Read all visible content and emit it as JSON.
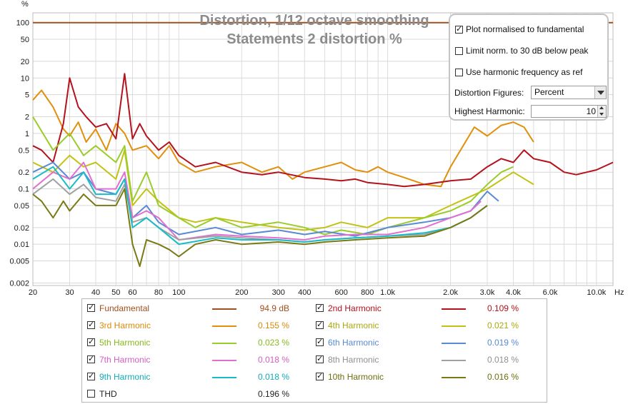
{
  "chart_data": {
    "type": "line",
    "title": "Distortion, 1/12 octave smoothing",
    "subtitle": "Statements 2 distortion %",
    "y_unit_label": "%",
    "x_unit_label": "Hz",
    "x_scale": "log",
    "y_scale": "log",
    "xlim": [
      20,
      12000
    ],
    "ylim": [
      0.0018,
      150
    ],
    "x_ticks": [
      {
        "v": 20,
        "label": "20"
      },
      {
        "v": 30,
        "label": "30"
      },
      {
        "v": 40,
        "label": "40"
      },
      {
        "v": 50,
        "label": "50"
      },
      {
        "v": 60,
        "label": "60"
      },
      {
        "v": 80,
        "label": "80"
      },
      {
        "v": 100,
        "label": "100"
      },
      {
        "v": 200,
        "label": "200"
      },
      {
        "v": 300,
        "label": "300"
      },
      {
        "v": 400,
        "label": "400"
      },
      {
        "v": 600,
        "label": "600"
      },
      {
        "v": 800,
        "label": "800"
      },
      {
        "v": 1000,
        "label": "1.0k"
      },
      {
        "v": 2000,
        "label": "2.0k"
      },
      {
        "v": 3000,
        "label": "3.0k"
      },
      {
        "v": 4000,
        "label": "4.0k"
      },
      {
        "v": 6000,
        "label": "6.0k"
      },
      {
        "v": 10000,
        "label": "10.0k"
      }
    ],
    "y_ticks": [
      {
        "v": 100,
        "label": "100"
      },
      {
        "v": 50,
        "label": "50"
      },
      {
        "v": 20,
        "label": "20"
      },
      {
        "v": 10,
        "label": "10"
      },
      {
        "v": 5,
        "label": "5"
      },
      {
        "v": 2,
        "label": "2"
      },
      {
        "v": 1,
        "label": "1"
      },
      {
        "v": 0.5,
        "label": "0.5"
      },
      {
        "v": 0.2,
        "label": "0.2"
      },
      {
        "v": 0.1,
        "label": "0.1"
      },
      {
        "v": 0.05,
        "label": "0.05"
      },
      {
        "v": 0.02,
        "label": "0.02"
      },
      {
        "v": 0.01,
        "label": "0.01"
      },
      {
        "v": 0.005,
        "label": "0.005"
      },
      {
        "v": 0.002,
        "label": "0.002"
      }
    ],
    "grid": true,
    "series": [
      {
        "name": "Fundamental",
        "color": "#a0501e",
        "x": [
          20,
          12000
        ],
        "y": [
          100,
          100
        ]
      },
      {
        "name": "3rd Harmonic",
        "color": "#e0900a",
        "x": [
          20,
          22,
          25,
          28,
          30,
          33,
          36,
          40,
          45,
          50,
          55,
          60,
          70,
          80,
          90,
          100,
          120,
          150,
          200,
          250,
          300,
          350,
          400,
          500,
          600,
          700,
          800,
          900,
          1000,
          1200,
          1500,
          1800,
          2000,
          2300,
          2600,
          3000,
          3500,
          4000,
          4500,
          5000
        ],
        "y": [
          4,
          6,
          3,
          1.2,
          0.9,
          1.6,
          0.7,
          1.2,
          0.5,
          1.5,
          1.0,
          0.5,
          0.6,
          0.35,
          0.6,
          0.3,
          0.2,
          0.25,
          0.3,
          0.2,
          0.25,
          0.15,
          0.2,
          0.25,
          0.3,
          0.22,
          0.2,
          0.25,
          0.2,
          0.16,
          0.12,
          0.11,
          0.25,
          0.6,
          1.3,
          0.9,
          1.4,
          1.6,
          1.3,
          0.7
        ]
      },
      {
        "name": "2nd Harmonic",
        "color": "#b4121c",
        "x": [
          20,
          22,
          25,
          28,
          30,
          33,
          36,
          40,
          45,
          50,
          55,
          60,
          65,
          70,
          80,
          90,
          100,
          120,
          150,
          200,
          250,
          300,
          400,
          500,
          600,
          700,
          800,
          1000,
          1200,
          1500,
          2000,
          2500,
          3000,
          3500,
          4000,
          4500,
          5000,
          6000,
          7000,
          8000,
          9000,
          10000,
          12000
        ],
        "y": [
          0.6,
          0.5,
          0.3,
          1.5,
          10,
          3,
          2,
          1.3,
          1.5,
          0.8,
          12,
          0.8,
          1.5,
          0.9,
          0.5,
          0.7,
          0.4,
          0.25,
          0.3,
          0.2,
          0.18,
          0.2,
          0.16,
          0.15,
          0.14,
          0.15,
          0.13,
          0.12,
          0.11,
          0.12,
          0.14,
          0.15,
          0.25,
          0.35,
          0.3,
          0.5,
          0.35,
          0.3,
          0.2,
          0.18,
          0.2,
          0.22,
          0.3
        ]
      },
      {
        "name": "4th Harmonic",
        "color": "#c2c214",
        "x": [
          20,
          25,
          30,
          35,
          40,
          50,
          55,
          60,
          70,
          80,
          100,
          120,
          150,
          200,
          300,
          400,
          500,
          600,
          800,
          1000,
          1500,
          2000,
          3000,
          4000,
          5000
        ],
        "y": [
          0.3,
          0.2,
          0.4,
          0.25,
          0.3,
          0.15,
          0.5,
          0.05,
          0.1,
          0.06,
          0.03,
          0.025,
          0.03,
          0.025,
          0.02,
          0.018,
          0.02,
          0.025,
          0.02,
          0.03,
          0.03,
          0.05,
          0.1,
          0.2,
          0.12
        ]
      },
      {
        "name": "5th Harmonic",
        "color": "#9acc2a",
        "x": [
          20,
          25,
          30,
          35,
          40,
          50,
          55,
          60,
          70,
          80,
          100,
          120,
          150,
          200,
          300,
          400,
          500,
          600,
          800,
          1000,
          1500,
          2000,
          2500,
          3000,
          3500,
          4000
        ],
        "y": [
          2,
          0.5,
          1,
          0.4,
          0.6,
          0.3,
          0.6,
          0.06,
          0.2,
          0.05,
          0.03,
          0.02,
          0.03,
          0.02,
          0.025,
          0.02,
          0.015,
          0.018,
          0.015,
          0.02,
          0.03,
          0.04,
          0.06,
          0.12,
          0.2,
          0.25
        ]
      },
      {
        "name": "6th Harmonic",
        "color": "#5a8ad4",
        "x": [
          20,
          25,
          30,
          35,
          40,
          50,
          55,
          60,
          70,
          80,
          100,
          150,
          200,
          300,
          400,
          500,
          700,
          1000,
          1500,
          2000,
          2500,
          3000,
          3400
        ],
        "y": [
          0.2,
          0.3,
          0.15,
          0.2,
          0.1,
          0.08,
          0.15,
          0.03,
          0.05,
          0.025,
          0.015,
          0.02,
          0.015,
          0.018,
          0.015,
          0.017,
          0.014,
          0.02,
          0.025,
          0.03,
          0.04,
          0.09,
          0.06
        ]
      },
      {
        "name": "7th Harmonic",
        "color": "#e070d0",
        "x": [
          20,
          25,
          30,
          35,
          40,
          50,
          55,
          60,
          70,
          80,
          100,
          150,
          200,
          300,
          400,
          500,
          700,
          1000,
          1500,
          2000,
          2500,
          2800
        ],
        "y": [
          0.1,
          0.2,
          0.15,
          0.3,
          0.1,
          0.1,
          0.2,
          0.03,
          0.04,
          0.03,
          0.012,
          0.015,
          0.014,
          0.013,
          0.012,
          0.014,
          0.015,
          0.015,
          0.02,
          0.03,
          0.04,
          0.06
        ]
      },
      {
        "name": "8th Harmonic",
        "color": "#a0a0a0",
        "x": [
          20,
          25,
          30,
          35,
          40,
          50,
          55,
          60,
          70,
          80,
          100,
          150,
          200,
          300,
          400,
          500,
          700,
          1000,
          1500,
          2000,
          2500,
          3000
        ],
        "y": [
          0.08,
          0.15,
          0.08,
          0.12,
          0.07,
          0.06,
          0.12,
          0.025,
          0.03,
          0.02,
          0.012,
          0.014,
          0.013,
          0.012,
          0.011,
          0.012,
          0.013,
          0.014,
          0.015,
          0.02,
          0.03,
          0.05
        ]
      },
      {
        "name": "9th Harmonic",
        "color": "#18bcc8",
        "x": [
          20,
          25,
          30,
          35,
          40,
          50,
          55,
          60,
          70,
          80,
          100,
          150,
          200,
          300,
          400,
          500,
          700,
          1000,
          1500,
          2000,
          2500,
          3000
        ],
        "y": [
          0.15,
          0.25,
          0.1,
          0.2,
          0.08,
          0.08,
          0.15,
          0.02,
          0.03,
          0.02,
          0.01,
          0.013,
          0.012,
          0.012,
          0.011,
          0.012,
          0.013,
          0.014,
          0.016,
          0.02,
          0.03,
          0.05
        ]
      },
      {
        "name": "10th Harmonic",
        "color": "#7a7a14",
        "x": [
          20,
          22,
          25,
          28,
          30,
          35,
          40,
          50,
          55,
          60,
          65,
          70,
          80,
          90,
          100,
          120,
          150,
          200,
          300,
          400,
          500,
          700,
          1000,
          1500,
          2000,
          2500,
          3000
        ],
        "y": [
          0.08,
          0.06,
          0.03,
          0.06,
          0.04,
          0.08,
          0.05,
          0.05,
          0.1,
          0.01,
          0.004,
          0.012,
          0.01,
          0.008,
          0.006,
          0.01,
          0.012,
          0.01,
          0.011,
          0.01,
          0.011,
          0.012,
          0.013,
          0.014,
          0.02,
          0.03,
          0.05
        ]
      }
    ]
  },
  "panel": {
    "opt1": {
      "label": "Plot normalised to fundamental",
      "checked": true
    },
    "opt2": {
      "label": "Limit norm. to 30 dB below peak",
      "checked": false
    },
    "opt3": {
      "label": "Use harmonic frequency as ref",
      "checked": false
    },
    "distortion_figures": {
      "label": "Distortion Figures:",
      "value": "Percent"
    },
    "highest_harmonic": {
      "label": "Highest Harmonic:",
      "value": "10"
    }
  },
  "legend": [
    {
      "name": "Fundamental",
      "value": "94.9 dB",
      "color": "#a0501e",
      "name_color": "#a0501e",
      "value_color": "#a0501e",
      "checked": true,
      "swatch": true
    },
    {
      "name": "2nd Harmonic",
      "value": "0.109 %",
      "color": "#b4121c",
      "name_color": "#b4121c",
      "value_color": "#b4121c",
      "checked": true,
      "swatch": true
    },
    {
      "name": "3rd Harmonic",
      "value": "0.155 %",
      "color": "#e0900a",
      "name_color": "#d88a0a",
      "value_color": "#d88a0a",
      "checked": true,
      "swatch": true
    },
    {
      "name": "4th Harmonic",
      "value": "0.021 %",
      "color": "#c2c214",
      "name_color": "#a8a810",
      "value_color": "#a8a810",
      "checked": true,
      "swatch": true
    },
    {
      "name": "5th Harmonic",
      "value": "0.023 %",
      "color": "#9acc2a",
      "name_color": "#86b820",
      "value_color": "#86b820",
      "checked": true,
      "swatch": true
    },
    {
      "name": "6th Harmonic",
      "value": "0.019 %",
      "color": "#5a8ad4",
      "name_color": "#5a8ad4",
      "value_color": "#5a8ad4",
      "checked": true,
      "swatch": true
    },
    {
      "name": "7th Harmonic",
      "value": "0.018 %",
      "color": "#e070d0",
      "name_color": "#d060c0",
      "value_color": "#d060c0",
      "checked": true,
      "swatch": true
    },
    {
      "name": "8th Harmonic",
      "value": "0.018 %",
      "color": "#a0a0a0",
      "name_color": "#909090",
      "value_color": "#909090",
      "checked": true,
      "swatch": true
    },
    {
      "name": "9th Harmonic",
      "value": "0.018 %",
      "color": "#18bcc8",
      "name_color": "#14aab4",
      "value_color": "#14aab4",
      "checked": true,
      "swatch": true
    },
    {
      "name": "10th Harmonic",
      "value": "0.016 %",
      "color": "#7a7a14",
      "name_color": "#6e6e10",
      "value_color": "#6e6e10",
      "checked": true,
      "swatch": true
    },
    {
      "name": "THD",
      "value": "0.196 %",
      "color": "#222222",
      "name_color": "#222222",
      "value_color": "#222222",
      "checked": false,
      "swatch": false
    }
  ]
}
